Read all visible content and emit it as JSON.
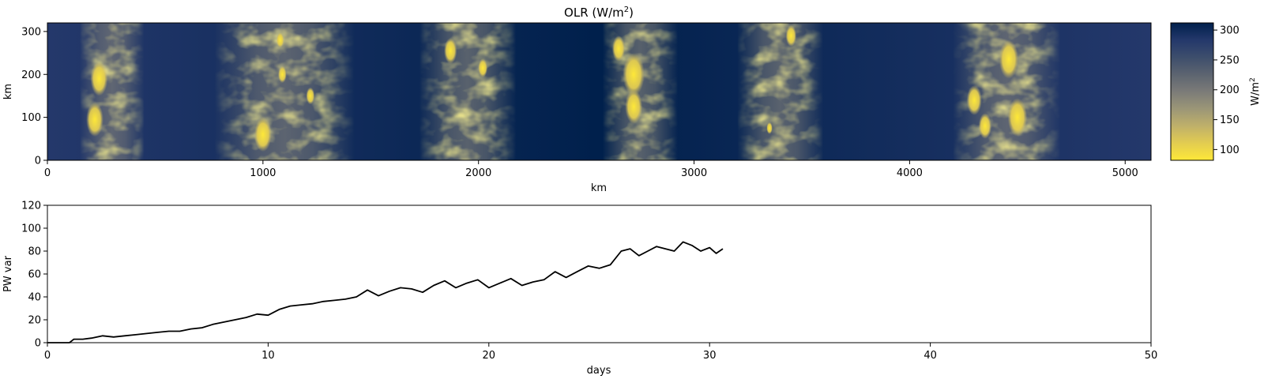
{
  "chart_data": [
    {
      "type": "heatmap",
      "title_main": "OLR (W/m",
      "title_sup": "2",
      "title_end": ")",
      "xlabel": "km",
      "ylabel": "km",
      "xlim": [
        0,
        5120
      ],
      "ylim": [
        0,
        320
      ],
      "xticks": [
        "0",
        "1000",
        "2000",
        "3000",
        "4000",
        "5000"
      ],
      "yticks": [
        "0",
        "100",
        "200",
        "300"
      ],
      "colormap": "cividis",
      "colormap_stops": [
        "#fee838",
        "#e2cc51",
        "#bfb06a",
        "#9b9677",
        "#7b7b78",
        "#5c6470",
        "#3d4e6c",
        "#24386b",
        "#00204c"
      ],
      "colorbar": {
        "label_main": "W/m",
        "label_sup": "2",
        "range": [
          82,
          312
        ],
        "ticks": [
          "100",
          "150",
          "200",
          "250",
          "300"
        ]
      },
      "cloud_bands_km": [
        {
          "center": 300,
          "width": 300
        },
        {
          "center": 1100,
          "width": 650
        },
        {
          "center": 1950,
          "width": 450
        },
        {
          "center": 2750,
          "width": 350
        },
        {
          "center": 3400,
          "width": 400
        },
        {
          "center": 4450,
          "width": 500
        }
      ],
      "convective_cells": [
        {
          "x": 240,
          "y": 190,
          "r": 40
        },
        {
          "x": 220,
          "y": 95,
          "r": 40
        },
        {
          "x": 1090,
          "y": 200,
          "r": 20
        },
        {
          "x": 1080,
          "y": 280,
          "r": 18
        },
        {
          "x": 1220,
          "y": 150,
          "r": 20
        },
        {
          "x": 1000,
          "y": 60,
          "r": 40
        },
        {
          "x": 1870,
          "y": 255,
          "r": 30
        },
        {
          "x": 2020,
          "y": 215,
          "r": 22
        },
        {
          "x": 2650,
          "y": 260,
          "r": 30
        },
        {
          "x": 2720,
          "y": 200,
          "r": 50
        },
        {
          "x": 2720,
          "y": 125,
          "r": 40
        },
        {
          "x": 3350,
          "y": 75,
          "r": 14
        },
        {
          "x": 3450,
          "y": 290,
          "r": 25
        },
        {
          "x": 4460,
          "y": 235,
          "r": 45
        },
        {
          "x": 4500,
          "y": 100,
          "r": 45
        },
        {
          "x": 4300,
          "y": 140,
          "r": 35
        },
        {
          "x": 4350,
          "y": 80,
          "r": 30
        }
      ]
    },
    {
      "type": "line",
      "xlabel": "days",
      "ylabel": "PW var",
      "xlim": [
        0,
        50
      ],
      "ylim": [
        0,
        120
      ],
      "xticks": [
        "0",
        "10",
        "20",
        "30",
        "40",
        "50"
      ],
      "yticks": [
        "0",
        "20",
        "40",
        "60",
        "80",
        "100",
        "120"
      ],
      "line_color": "#000000",
      "x": [
        0,
        1,
        1.2,
        1.6,
        2,
        2.5,
        3,
        3.5,
        4,
        4.5,
        5,
        5.5,
        6,
        6.5,
        7,
        7.5,
        8,
        8.5,
        9,
        9.5,
        10,
        10.5,
        11,
        11.5,
        12,
        12.5,
        13,
        13.5,
        14,
        14.5,
        15,
        15.5,
        16,
        16.5,
        17,
        17.5,
        18,
        18.5,
        19,
        19.5,
        20,
        20.5,
        21,
        21.5,
        22,
        22.5,
        23,
        23.5,
        24,
        24.5,
        25,
        25.5,
        26,
        26.4,
        26.8,
        27.2,
        27.6,
        28,
        28.4,
        28.8,
        29.2,
        29.6,
        30,
        30.3,
        30.6
      ],
      "y": [
        0,
        0,
        3,
        3,
        4,
        6,
        5,
        6,
        7,
        8,
        9,
        10,
        10,
        12,
        13,
        16,
        18,
        20,
        22,
        25,
        24,
        29,
        32,
        33,
        34,
        36,
        37,
        38,
        40,
        46,
        41,
        45,
        48,
        47,
        44,
        50,
        54,
        48,
        52,
        55,
        48,
        52,
        56,
        50,
        53,
        55,
        62,
        57,
        62,
        67,
        65,
        68,
        80,
        82,
        76,
        80,
        84,
        82,
        80,
        88,
        85,
        80,
        83,
        78,
        82
      ]
    }
  ]
}
